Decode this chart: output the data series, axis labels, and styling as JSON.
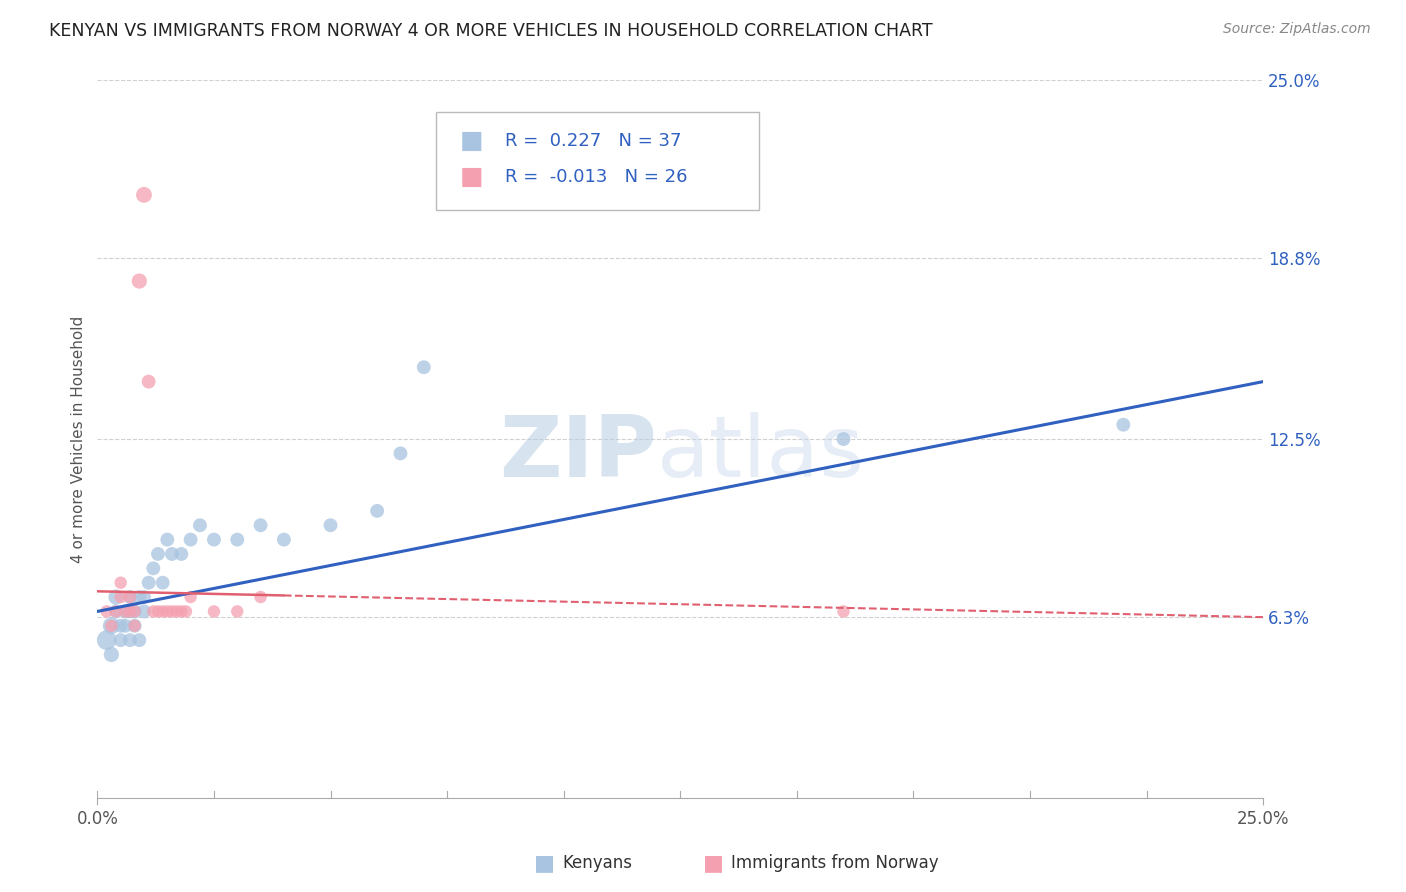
{
  "title": "KENYAN VS IMMIGRANTS FROM NORWAY 4 OR MORE VEHICLES IN HOUSEHOLD CORRELATION CHART",
  "source": "Source: ZipAtlas.com",
  "ylabel": "4 or more Vehicles in Household",
  "x_min": 0.0,
  "x_max": 0.25,
  "y_min": 0.0,
  "y_max": 0.25,
  "y_tick_labels_right": [
    "6.3%",
    "12.5%",
    "18.8%",
    "25.0%"
  ],
  "y_tick_positions_right": [
    0.063,
    0.125,
    0.188,
    0.25
  ],
  "kenyan_color": "#a8c4e0",
  "norway_color": "#f4a0b0",
  "kenyan_line_color": "#3060c0",
  "norway_line_color": "#e06070",
  "R_kenyan": 0.227,
  "N_kenyan": 37,
  "R_norway": -0.013,
  "N_norway": 26,
  "watermark_zip": "ZIP",
  "watermark_atlas": "atlas",
  "kenyan_x": [
    0.002,
    0.003,
    0.003,
    0.004,
    0.004,
    0.005,
    0.005,
    0.006,
    0.006,
    0.007,
    0.007,
    0.007,
    0.008,
    0.008,
    0.009,
    0.009,
    0.01,
    0.01,
    0.011,
    0.012,
    0.013,
    0.014,
    0.015,
    0.016,
    0.018,
    0.02,
    0.022,
    0.025,
    0.03,
    0.035,
    0.04,
    0.05,
    0.06,
    0.065,
    0.07,
    0.22,
    0.16
  ],
  "kenyan_y": [
    0.055,
    0.06,
    0.05,
    0.07,
    0.065,
    0.055,
    0.06,
    0.065,
    0.06,
    0.055,
    0.065,
    0.07,
    0.06,
    0.065,
    0.055,
    0.07,
    0.065,
    0.07,
    0.075,
    0.08,
    0.085,
    0.075,
    0.09,
    0.085,
    0.085,
    0.09,
    0.095,
    0.09,
    0.09,
    0.095,
    0.09,
    0.095,
    0.1,
    0.12,
    0.15,
    0.13,
    0.125
  ],
  "norway_x": [
    0.002,
    0.003,
    0.004,
    0.005,
    0.005,
    0.006,
    0.007,
    0.007,
    0.008,
    0.008,
    0.009,
    0.01,
    0.011,
    0.012,
    0.013,
    0.014,
    0.015,
    0.016,
    0.017,
    0.018,
    0.019,
    0.02,
    0.025,
    0.03,
    0.035,
    0.16
  ],
  "norway_y": [
    0.065,
    0.06,
    0.065,
    0.07,
    0.075,
    0.065,
    0.07,
    0.065,
    0.06,
    0.065,
    0.18,
    0.21,
    0.145,
    0.065,
    0.065,
    0.065,
    0.065,
    0.065,
    0.065,
    0.065,
    0.065,
    0.07,
    0.065,
    0.065,
    0.07,
    0.065
  ],
  "norway_sizes": [
    80,
    80,
    80,
    80,
    80,
    80,
    80,
    80,
    80,
    80,
    120,
    130,
    100,
    80,
    80,
    80,
    80,
    80,
    80,
    80,
    80,
    80,
    80,
    80,
    80,
    80
  ],
  "kenyan_sizes": [
    200,
    150,
    120,
    120,
    100,
    100,
    100,
    100,
    100,
    100,
    100,
    100,
    100,
    100,
    100,
    100,
    100,
    100,
    100,
    100,
    100,
    100,
    100,
    100,
    100,
    100,
    100,
    100,
    100,
    100,
    100,
    100,
    100,
    100,
    100,
    100,
    100
  ],
  "background_color": "#ffffff",
  "grid_color": "#d0d0d0",
  "title_color": "#222222",
  "label_color": "#555555",
  "norway_line_solid_end": 0.04,
  "norway_line_dash_start": 0.04,
  "kenyan_line_start_y": 0.065,
  "kenyan_line_end_y": 0.145
}
